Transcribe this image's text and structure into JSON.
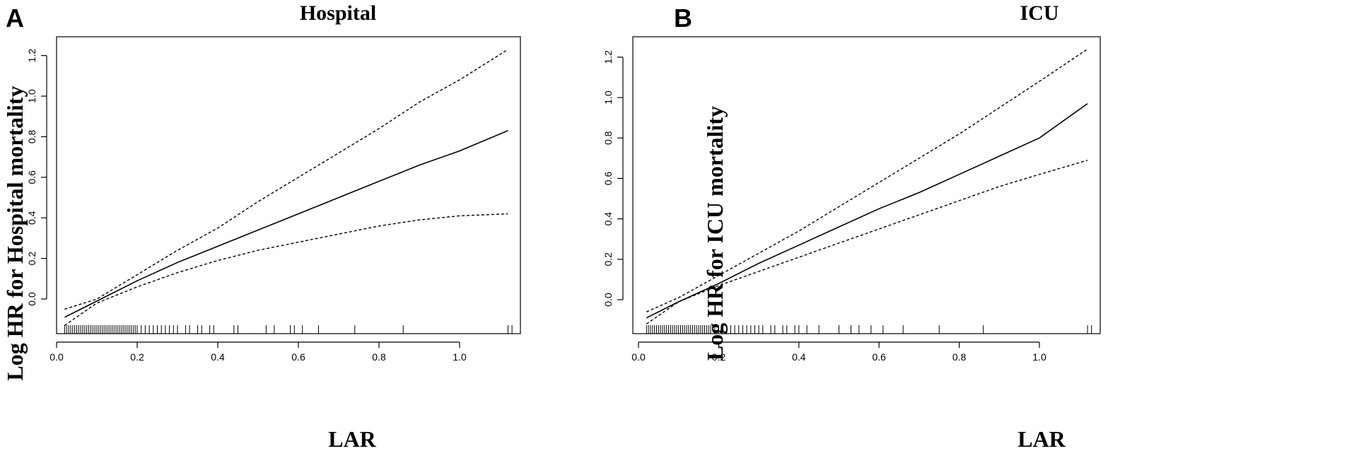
{
  "chart_data": [
    {
      "type": "line",
      "panel_label": "A",
      "title": "Hospital",
      "xlabel": "LAR",
      "ylabel": "Log HR for Hospital mortality",
      "xlim": [
        0.0,
        1.15
      ],
      "ylim": [
        -0.15,
        1.25
      ],
      "xticks": [
        "0.0",
        "0.2",
        "0.4",
        "0.6",
        "0.8",
        "1.0"
      ],
      "yticks": [
        "0.0",
        "0.2",
        "0.4",
        "0.6",
        "0.8",
        "1.0",
        "1.2"
      ],
      "grid": false,
      "legend": "none",
      "series": [
        {
          "role": "estimate",
          "style": "solid",
          "x": [
            0.02,
            0.1,
            0.2,
            0.3,
            0.4,
            0.5,
            0.6,
            0.7,
            0.8,
            0.9,
            1.0,
            1.12
          ],
          "y": [
            -0.09,
            -0.01,
            0.09,
            0.18,
            0.26,
            0.34,
            0.42,
            0.5,
            0.58,
            0.66,
            0.73,
            0.83
          ]
        },
        {
          "role": "upper_ci",
          "style": "dashed",
          "x": [
            0.02,
            0.1,
            0.2,
            0.3,
            0.4,
            0.5,
            0.6,
            0.7,
            0.8,
            0.9,
            1.0,
            1.12
          ],
          "y": [
            -0.05,
            0.0,
            0.12,
            0.24,
            0.35,
            0.48,
            0.6,
            0.72,
            0.84,
            0.97,
            1.08,
            1.23
          ]
        },
        {
          "role": "lower_ci",
          "style": "dashed",
          "x": [
            0.02,
            0.1,
            0.2,
            0.3,
            0.4,
            0.5,
            0.6,
            0.7,
            0.8,
            0.9,
            1.0,
            1.12
          ],
          "y": [
            -0.13,
            -0.02,
            0.06,
            0.13,
            0.19,
            0.24,
            0.28,
            0.32,
            0.36,
            0.39,
            0.41,
            0.42
          ]
        }
      ],
      "rug": [
        0.02,
        0.025,
        0.03,
        0.035,
        0.04,
        0.045,
        0.05,
        0.055,
        0.06,
        0.065,
        0.07,
        0.075,
        0.08,
        0.085,
        0.09,
        0.095,
        0.1,
        0.105,
        0.11,
        0.115,
        0.12,
        0.125,
        0.13,
        0.135,
        0.14,
        0.145,
        0.15,
        0.155,
        0.16,
        0.165,
        0.17,
        0.175,
        0.18,
        0.185,
        0.19,
        0.195,
        0.2,
        0.21,
        0.22,
        0.23,
        0.24,
        0.25,
        0.26,
        0.27,
        0.28,
        0.29,
        0.3,
        0.32,
        0.33,
        0.35,
        0.36,
        0.38,
        0.39,
        0.44,
        0.45,
        0.52,
        0.54,
        0.58,
        0.59,
        0.61,
        0.65,
        0.74,
        0.86,
        1.12,
        1.13
      ]
    },
    {
      "type": "line",
      "panel_label": "B",
      "title": "ICU",
      "xlabel": "LAR",
      "ylabel": "Log HR for ICU mortality",
      "xlim": [
        0.0,
        1.15
      ],
      "ylim": [
        -0.15,
        1.25
      ],
      "xticks": [
        "0.0",
        "0.2",
        "0.4",
        "0.6",
        "0.8",
        "1.0"
      ],
      "yticks": [
        "0.0",
        "0.2",
        "0.4",
        "0.6",
        "0.8",
        "1.0",
        "1.2"
      ],
      "grid": false,
      "legend": "none",
      "series": [
        {
          "role": "estimate",
          "style": "solid",
          "x": [
            0.02,
            0.1,
            0.2,
            0.3,
            0.4,
            0.5,
            0.6,
            0.7,
            0.8,
            0.9,
            1.0,
            1.12
          ],
          "y": [
            -0.09,
            -0.01,
            0.08,
            0.18,
            0.27,
            0.36,
            0.45,
            0.53,
            0.62,
            0.71,
            0.8,
            0.97
          ]
        },
        {
          "role": "upper_ci",
          "style": "dashed",
          "x": [
            0.02,
            0.1,
            0.2,
            0.3,
            0.4,
            0.5,
            0.6,
            0.7,
            0.8,
            0.9,
            1.0,
            1.12
          ],
          "y": [
            -0.06,
            0.01,
            0.12,
            0.23,
            0.34,
            0.46,
            0.58,
            0.7,
            0.82,
            0.95,
            1.08,
            1.24
          ]
        },
        {
          "role": "lower_ci",
          "style": "dashed",
          "x": [
            0.02,
            0.1,
            0.2,
            0.3,
            0.4,
            0.5,
            0.6,
            0.7,
            0.8,
            0.9,
            1.0,
            1.12
          ],
          "y": [
            -0.12,
            -0.01,
            0.07,
            0.14,
            0.21,
            0.28,
            0.35,
            0.42,
            0.49,
            0.56,
            0.62,
            0.69
          ]
        }
      ],
      "rug": [
        0.02,
        0.025,
        0.03,
        0.035,
        0.04,
        0.045,
        0.05,
        0.055,
        0.06,
        0.065,
        0.07,
        0.075,
        0.08,
        0.085,
        0.09,
        0.095,
        0.1,
        0.105,
        0.11,
        0.115,
        0.12,
        0.125,
        0.13,
        0.135,
        0.14,
        0.145,
        0.15,
        0.155,
        0.16,
        0.165,
        0.17,
        0.175,
        0.18,
        0.19,
        0.2,
        0.21,
        0.22,
        0.23,
        0.24,
        0.25,
        0.26,
        0.27,
        0.28,
        0.29,
        0.3,
        0.31,
        0.33,
        0.34,
        0.36,
        0.37,
        0.39,
        0.4,
        0.42,
        0.45,
        0.5,
        0.53,
        0.55,
        0.58,
        0.61,
        0.66,
        0.75,
        0.86,
        1.12,
        1.13
      ]
    }
  ]
}
